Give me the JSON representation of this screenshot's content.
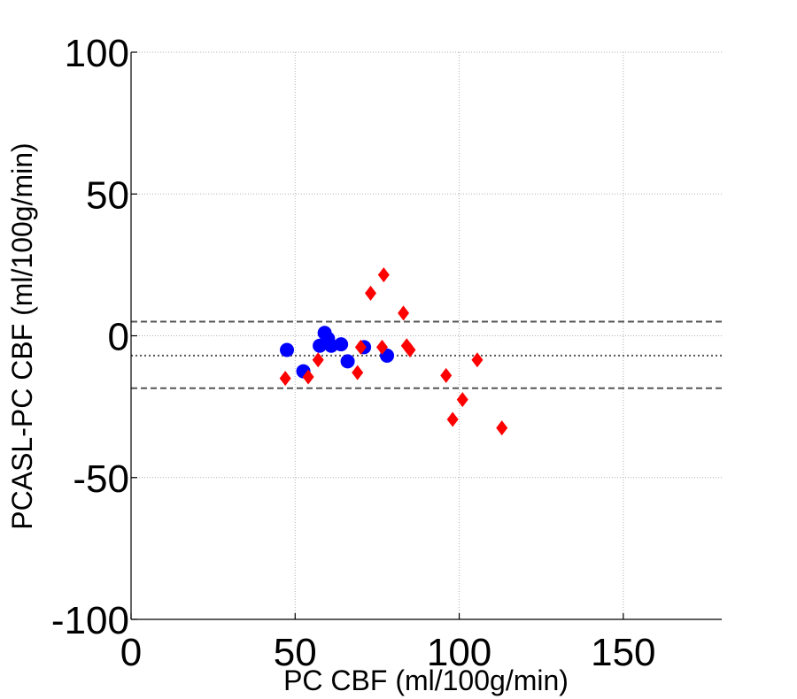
{
  "chart_data": {
    "type": "scatter",
    "title": "",
    "xlabel": "PC CBF (ml/100g/min)",
    "ylabel": "PCASL-PC CBF  (ml/100g/min)",
    "xlim": [
      0,
      180
    ],
    "ylim": [
      -100,
      100
    ],
    "xticks": [
      0,
      50,
      100,
      150
    ],
    "yticks": [
      -100,
      -50,
      0,
      50,
      100
    ],
    "xtick_labels": [
      "0",
      "50",
      "100",
      "150"
    ],
    "ytick_labels": [
      "-100",
      "-50",
      "0",
      "50",
      "100"
    ],
    "grid": true,
    "reference_lines": [
      {
        "y": 5,
        "style": "dashed",
        "color": "#555555"
      },
      {
        "y": -7,
        "style": "dotted",
        "color": "#555555"
      },
      {
        "y": -18.5,
        "style": "dashed",
        "color": "#555555"
      }
    ],
    "series": [
      {
        "marker": "circle",
        "color": "#0000ff",
        "points": [
          [
            47.5,
            -5
          ],
          [
            52.5,
            -12.5
          ],
          [
            57.5,
            -3.5
          ],
          [
            59,
            1
          ],
          [
            60,
            -1
          ],
          [
            61,
            -3.5
          ],
          [
            64,
            -3
          ],
          [
            66,
            -9
          ],
          [
            71,
            -4
          ],
          [
            78,
            -7
          ]
        ]
      },
      {
        "marker": "diamond",
        "color": "#ff0000",
        "points": [
          [
            47,
            -15
          ],
          [
            54,
            -14.5
          ],
          [
            57,
            -8.5
          ],
          [
            69,
            -13
          ],
          [
            70,
            -4
          ],
          [
            73,
            15
          ],
          [
            76.5,
            -4
          ],
          [
            77,
            21.5
          ],
          [
            83,
            8
          ],
          [
            84,
            -3.5
          ],
          [
            85,
            -5
          ],
          [
            96,
            -14
          ],
          [
            98,
            -29.5
          ],
          [
            101,
            -22.5
          ],
          [
            105.5,
            -8.5
          ],
          [
            113,
            -32.5
          ]
        ]
      }
    ]
  }
}
